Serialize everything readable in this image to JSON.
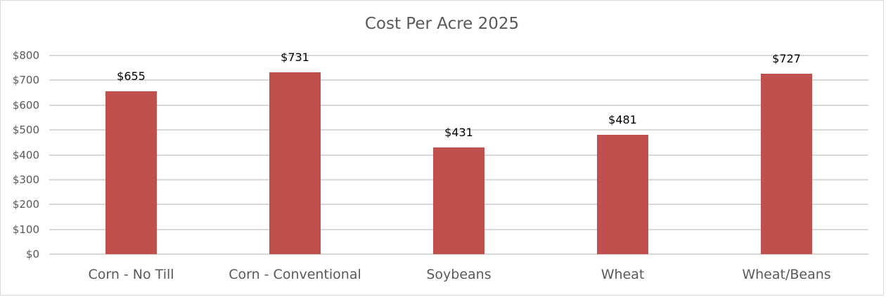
{
  "chart_data": {
    "type": "bar",
    "title": "Cost Per Acre 2025",
    "xlabel": "",
    "ylabel": "",
    "categories": [
      "Corn - No Till",
      "Corn - Conventional",
      "Soybeans",
      "Wheat",
      "Wheat/Beans"
    ],
    "values": [
      655,
      731,
      431,
      481,
      727
    ],
    "data_labels": [
      "$655",
      "$731",
      "$431",
      "$481",
      "$727"
    ],
    "ylim": [
      0,
      800
    ],
    "yticks": [
      0,
      100,
      200,
      300,
      400,
      500,
      600,
      700,
      800
    ],
    "ytick_labels": [
      "$0",
      "$100",
      "$200",
      "$300",
      "$400",
      "$500",
      "$600",
      "$700",
      "$800"
    ],
    "grid": true,
    "legend": "none",
    "bar_color": "#C0504D"
  }
}
